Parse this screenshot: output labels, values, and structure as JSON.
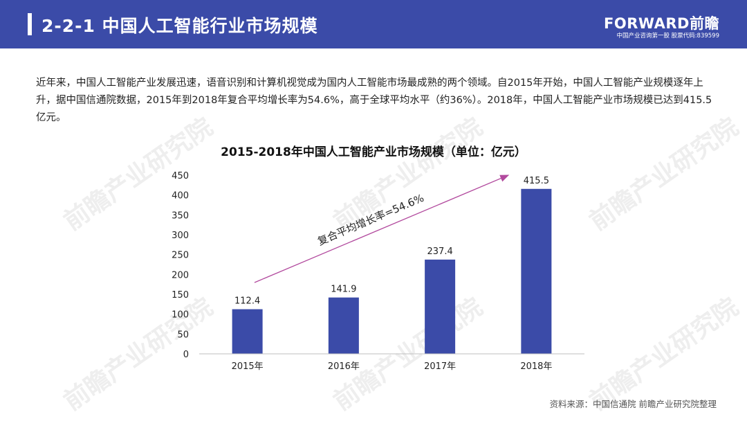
{
  "header": {
    "title": "2-2-1 中国人工智能行业市场规模",
    "logo": "FORWARD前瞻",
    "logo_sub": "中国产业咨询第一股 股票代码:839599"
  },
  "intro_text": "近年来，中国人工智能产业发展迅速，语音识别和计算机视觉成为国内人工智能市场最成熟的两个领域。自2015年开始，中国人工智能产业规模逐年上升，据中国信通院数据，2015年到2018年复合平均增长率为54.6%，高于全球平均水平（约36%）。2018年，中国人工智能产业市场规模已达到415.5亿元。",
  "source": "资料来源：中国信通院 前瞻产业研究院整理",
  "watermark": "前瞻产业研究院",
  "colors": {
    "header": "#3b4ba8",
    "bar": "#3b4ba8",
    "arrow": "#b24a9e"
  },
  "chart_data": {
    "type": "bar",
    "title": "2015-2018年中国人工智能产业市场规模（单位：亿元）",
    "categories": [
      "2015年",
      "2016年",
      "2017年",
      "2018年"
    ],
    "values": [
      112.4,
      141.9,
      237.4,
      415.5
    ],
    "value_labels": [
      "112.4",
      "141.9",
      "237.4",
      "415.5"
    ],
    "ylim": [
      0,
      450
    ],
    "yticks": [
      "0",
      "50",
      "100",
      "150",
      "200",
      "250",
      "300",
      "350",
      "400",
      "450"
    ],
    "annotation": "复合平均增长率=54.6%",
    "xlabel": "",
    "ylabel": ""
  }
}
